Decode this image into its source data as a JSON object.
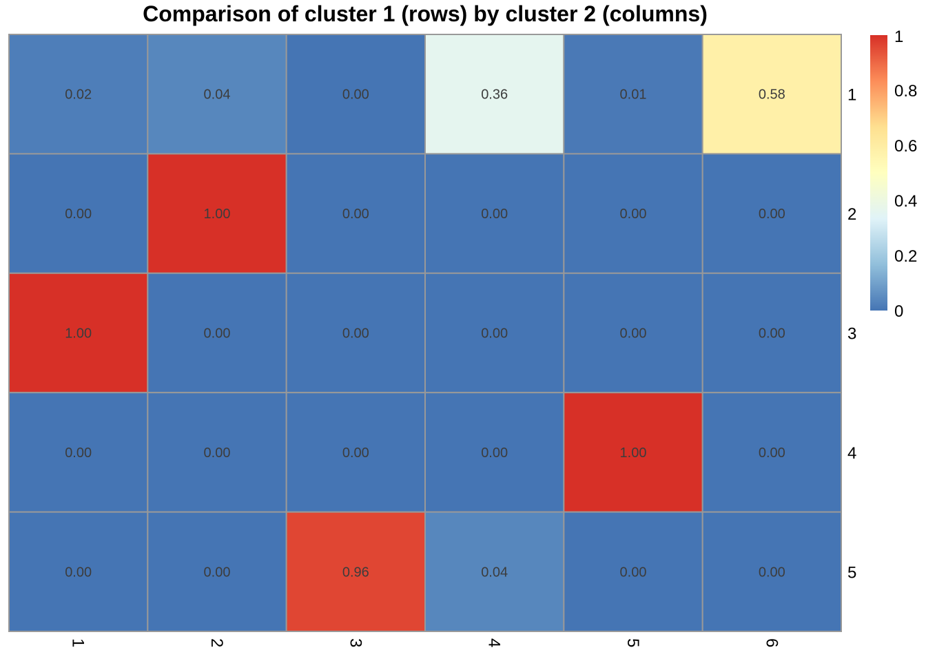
{
  "chart_data": {
    "type": "heatmap",
    "title": "Comparison of cluster 1 (rows) by cluster 2 (columns)",
    "rows": [
      "1",
      "2",
      "3",
      "4",
      "5"
    ],
    "columns": [
      "1",
      "2",
      "3",
      "4",
      "5",
      "6"
    ],
    "values": [
      [
        0.02,
        0.04,
        0.0,
        0.36,
        0.01,
        0.58
      ],
      [
        0.0,
        1.0,
        0.0,
        0.0,
        0.0,
        0.0
      ],
      [
        1.0,
        0.0,
        0.0,
        0.0,
        0.0,
        0.0
      ],
      [
        0.0,
        0.0,
        0.0,
        0.0,
        1.0,
        0.0
      ],
      [
        0.0,
        0.0,
        0.96,
        0.04,
        0.0,
        0.0
      ]
    ],
    "value_labels": [
      [
        "0.02",
        "0.04",
        "0.00",
        "0.36",
        "0.01",
        "0.58"
      ],
      [
        "0.00",
        "1.00",
        "0.00",
        "0.00",
        "0.00",
        "0.00"
      ],
      [
        "1.00",
        "0.00",
        "0.00",
        "0.00",
        "0.00",
        "0.00"
      ],
      [
        "0.00",
        "0.00",
        "0.00",
        "0.00",
        "1.00",
        "0.00"
      ],
      [
        "0.00",
        "0.00",
        "0.96",
        "0.04",
        "0.00",
        "0.00"
      ]
    ],
    "color_scale": {
      "range": [
        0,
        1
      ],
      "colors": [
        "#4575b4",
        "#91bfdb",
        "#e0f3f8",
        "#ffffbf",
        "#fee090",
        "#fc8d59",
        "#d73027"
      ]
    },
    "legend": {
      "position": "right",
      "ticks": [
        0,
        0.2,
        0.4,
        0.6,
        0.8,
        1
      ],
      "tick_labels": [
        "0",
        "0.2",
        "0.4",
        "0.6",
        "0.8",
        "1"
      ]
    },
    "row_labels_side": "right",
    "column_labels_side": "bottom",
    "column_labels_rotated": true,
    "cell_border_color": "#999999"
  }
}
